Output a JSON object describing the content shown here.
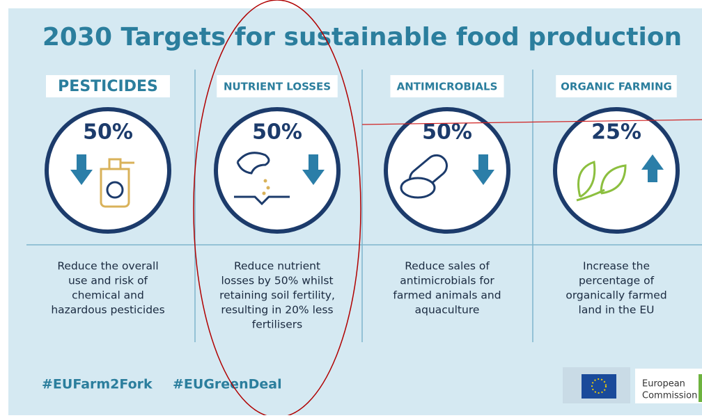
{
  "title": "2030 Targets for sustainable food production",
  "columns": [
    {
      "heading": "PESTICIDES",
      "percent": "50%",
      "description": [
        "Reduce the overall",
        "use and risk of",
        "chemical and",
        "hazardous pesticides"
      ]
    },
    {
      "heading": "NUTRIENT LOSSES",
      "percent": "50%",
      "description": [
        "Reduce nutrient",
        "losses by 50% whilst",
        "retaining soil fertility,",
        "resulting in 20% less",
        "fertilisers"
      ]
    },
    {
      "heading": "ANTIMICROBIALS",
      "percent": "50%",
      "description": [
        "Reduce sales of",
        "antimicrobials for",
        "farmed animals and",
        "aquaculture"
      ]
    },
    {
      "heading": "ORGANIC FARMING",
      "percent": "25%",
      "description": [
        "Increase the",
        "percentage of",
        "organically farmed",
        "land in the EU"
      ]
    }
  ],
  "hashtags": [
    "#EUFarm2Fork",
    "#EUGreenDeal"
  ],
  "logo": [
    "European",
    "Commission"
  ]
}
